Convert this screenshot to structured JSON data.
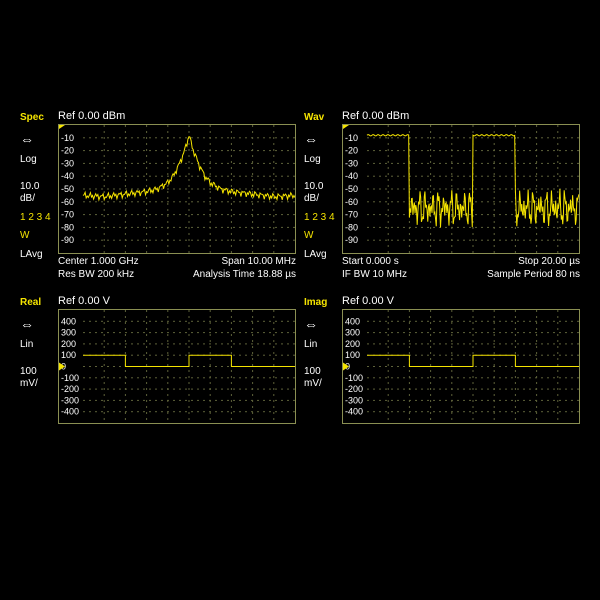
{
  "globals": {
    "background_color": "#000000",
    "text_color": "#ffffff",
    "accent_color": "#f5e400",
    "grid_color": "#5e623a",
    "border_color": "#8a8f52"
  },
  "panes": {
    "spec": {
      "title": "Spec",
      "ref": "Ref 0.00 dBm",
      "scale_mode": "Log",
      "per_div": "10.0",
      "per_div_unit": "dB/",
      "trace_nums": "1 2 3 4",
      "w": "W",
      "avg": "LAvg",
      "ylim": [
        -100,
        0
      ],
      "yticks": [
        -10,
        -20,
        -30,
        -40,
        -50,
        -60,
        -70,
        -80,
        -90
      ],
      "footer_left1": "Center 1.000 GHz",
      "footer_right1": "Span 10.00 MHz",
      "footer_left2": "Res BW 200 kHz",
      "footer_right2": "Analysis Time 18.88 µs",
      "type": "spectrum",
      "series_x": [
        0,
        0.1,
        0.2,
        0.3,
        0.35,
        0.4,
        0.425,
        0.45,
        0.475,
        0.49,
        0.5,
        0.51,
        0.525,
        0.55,
        0.575,
        0.6,
        0.65,
        0.7,
        0.8,
        0.9,
        1.0
      ],
      "series_y": [
        -55,
        -56,
        -54,
        -52,
        -50,
        -45,
        -40,
        -32,
        -22,
        -14,
        -8,
        -14,
        -22,
        -32,
        -40,
        -45,
        -50,
        -52,
        -54,
        -56,
        -55
      ]
    },
    "wav": {
      "title": "Wav",
      "ref": "Ref 0.00 dBm",
      "scale_mode": "Log",
      "per_div": "10.0",
      "per_div_unit": "dB/",
      "trace_nums": "1 2 3 4",
      "w": "W",
      "avg": "LAvg",
      "ylim": [
        -100,
        0
      ],
      "yticks": [
        -10,
        -20,
        -30,
        -40,
        -50,
        -60,
        -70,
        -80,
        -90
      ],
      "footer_left1": "Start 0.000  s",
      "footer_right1": "Stop 20.00 µs",
      "footer_left2": "IF BW 10 MHz",
      "footer_right2": "Sample Period 80 ns",
      "type": "pulse",
      "pulse_high": -8,
      "pulse_low_center": -65,
      "pulse_noise_amp": 18,
      "edges": [
        0.0,
        0.2,
        0.5,
        0.7,
        1.0
      ],
      "states": [
        1,
        0,
        1,
        0
      ]
    },
    "real": {
      "title": "Real",
      "ref": "Ref 0.00 V",
      "scale_mode": "Lin",
      "per_div": "100",
      "per_div_unit": "mV/",
      "ylim": [
        -500,
        500
      ],
      "yticks": [
        400,
        300,
        200,
        100,
        0.0,
        -100,
        -200,
        -300,
        -400
      ],
      "type": "square",
      "high": 100,
      "low": 0,
      "edges": [
        0.0,
        0.2,
        0.5,
        0.7,
        1.0
      ],
      "states": [
        1,
        0,
        1,
        0
      ]
    },
    "imag": {
      "title": "Imag",
      "ref": "Ref 0.00 V",
      "scale_mode": "Lin",
      "per_div": "100",
      "per_div_unit": "mV/",
      "ylim": [
        -500,
        500
      ],
      "yticks": [
        400,
        300,
        200,
        100,
        0.0,
        -100,
        -200,
        -300,
        -400
      ],
      "type": "square",
      "high": 100,
      "low": 0,
      "edges": [
        0.0,
        0.2,
        0.5,
        0.7,
        1.0
      ],
      "states": [
        1,
        0,
        1,
        0
      ]
    }
  }
}
